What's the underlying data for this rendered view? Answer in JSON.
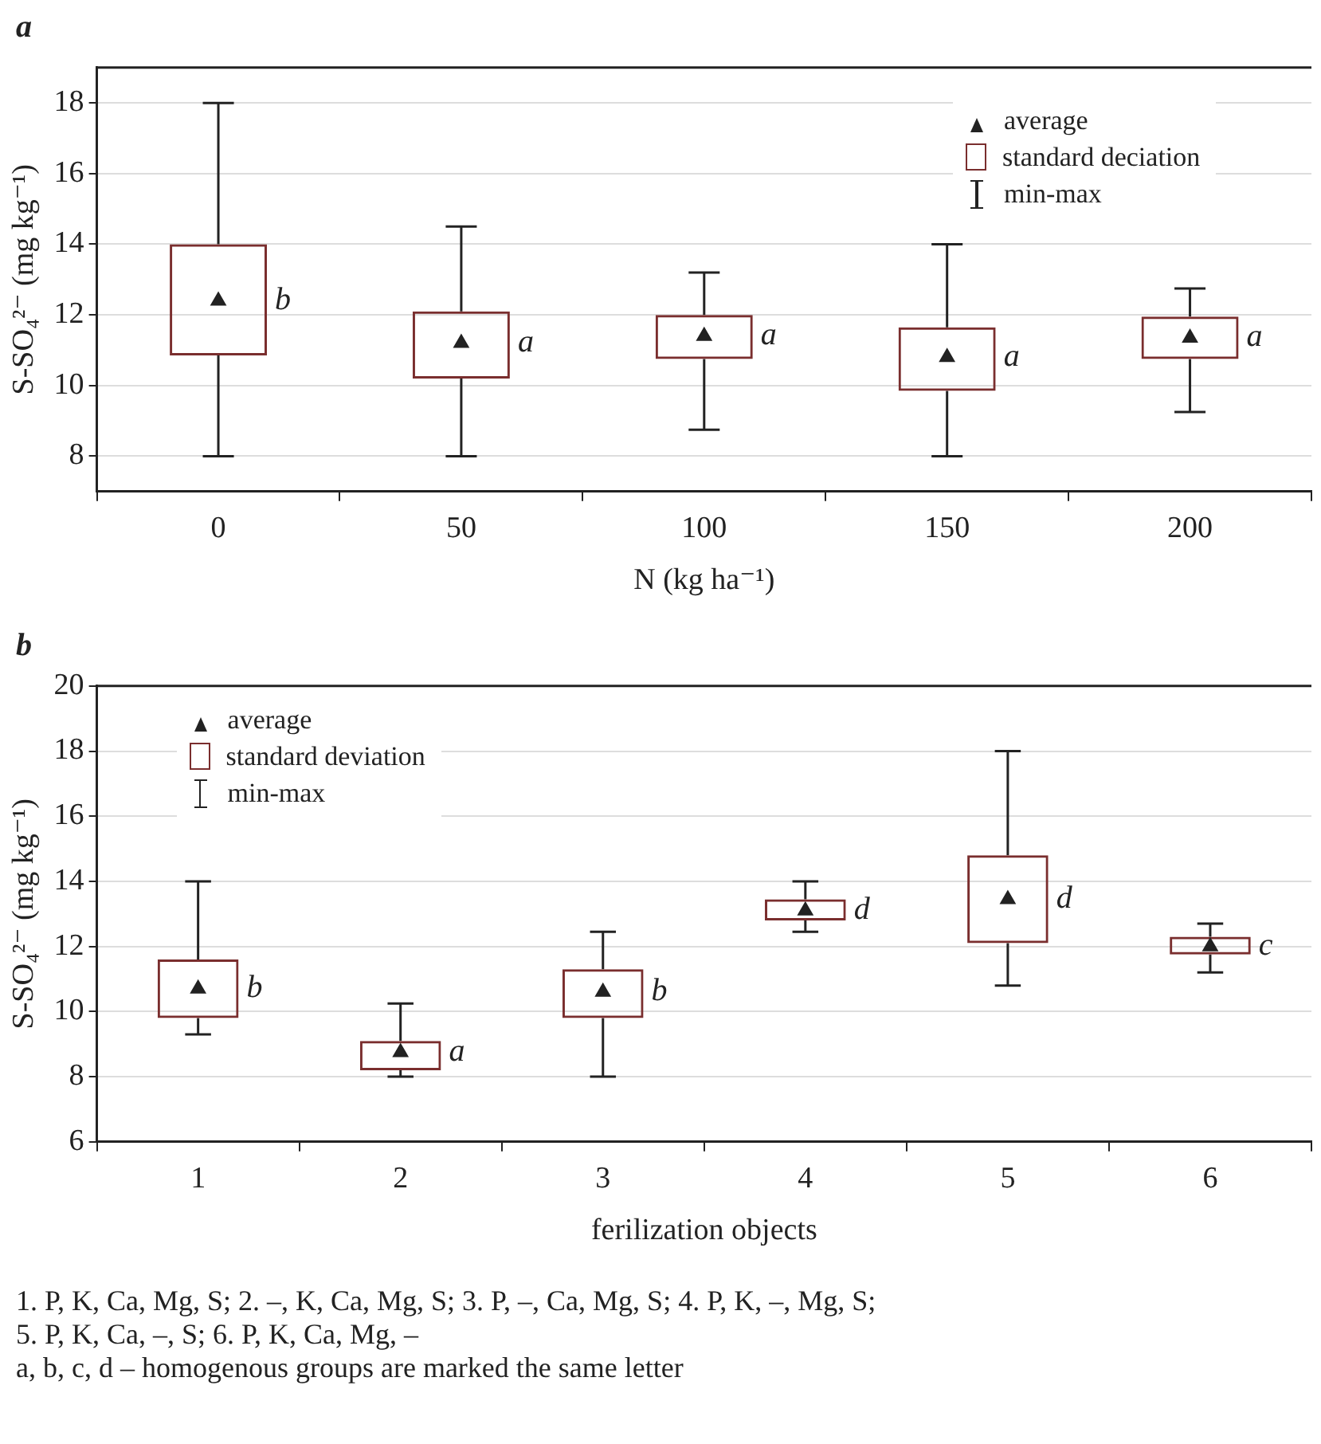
{
  "chart_data": [
    {
      "type": "box",
      "title": "a",
      "xlabel": "N (kg ha⁻¹)",
      "ylabel": "S-SO₄²⁻ (mg kg⁻¹)",
      "categories": [
        "0",
        "50",
        "100",
        "150",
        "200"
      ],
      "boxes": [
        {
          "low": 8,
          "q1": 10.85,
          "q3": 14,
          "high": 18,
          "mean": 12.4
        },
        {
          "low": 8,
          "q1": 10.2,
          "q3": 12.1,
          "high": 14.5,
          "mean": 11.2
        },
        {
          "low": 8.75,
          "q1": 10.75,
          "q3": 12,
          "high": 13.2,
          "mean": 11.4
        },
        {
          "low": 8,
          "q1": 9.85,
          "q3": 11.65,
          "high": 14,
          "mean": 10.8
        },
        {
          "low": 9.25,
          "q1": 10.75,
          "q3": 11.95,
          "high": 12.75,
          "mean": 11.35
        }
      ],
      "color": "#7a2e2e",
      "ylim": [
        7,
        19
      ],
      "yticks": [
        8,
        10,
        12,
        14,
        16,
        18
      ],
      "grid": "y",
      "marker": "triangle",
      "annotations": [
        "average",
        "standard deciation",
        "min-max",
        "b",
        "a",
        "a",
        "a",
        "a"
      ]
    },
    {
      "type": "box",
      "title": "b",
      "xlabel": "ferilization objects",
      "ylabel": "S-SO₄²⁻ (mg kg⁻¹)",
      "categories": [
        "1",
        "2",
        "3",
        "4",
        "5",
        "6"
      ],
      "boxes": [
        {
          "low": 9.3,
          "q1": 9.8,
          "q3": 11.6,
          "high": 14,
          "mean": 10.7
        },
        {
          "low": 8,
          "q1": 8.2,
          "q3": 9.1,
          "high": 10.25,
          "mean": 8.75
        },
        {
          "low": 8,
          "q1": 9.8,
          "q3": 11.3,
          "high": 12.45,
          "mean": 10.6
        },
        {
          "low": 12.45,
          "q1": 12.8,
          "q3": 13.45,
          "high": 14,
          "mean": 13.1
        },
        {
          "low": 10.8,
          "q1": 12.1,
          "q3": 14.8,
          "high": 18,
          "mean": 13.45
        },
        {
          "low": 11.2,
          "q1": 11.75,
          "q3": 12.3,
          "high": 12.7,
          "mean": 12
        }
      ],
      "color": "#7a2e2e",
      "ylim": [
        6,
        20
      ],
      "yticks": [
        6,
        8,
        10,
        12,
        14,
        16,
        18,
        20
      ],
      "grid": "y",
      "marker": "triangle",
      "annotations": [
        "average",
        "standard deviation",
        "min-max",
        "b",
        "a",
        "b",
        "d",
        "d",
        "c"
      ]
    },
    {
      "type": "other",
      "annotations": [
        "1. P, K, Ca, Mg, S;  2. –, K, Ca, Mg, S;  3. P, –, Ca, Mg, S;  4. P, K, –, Mg, S;",
        "5. P, K, Ca, –, S;  6. P, K, Ca, Mg, –",
        "a, b, c, d – homogenous groups are marked the same letter"
      ]
    }
  ]
}
